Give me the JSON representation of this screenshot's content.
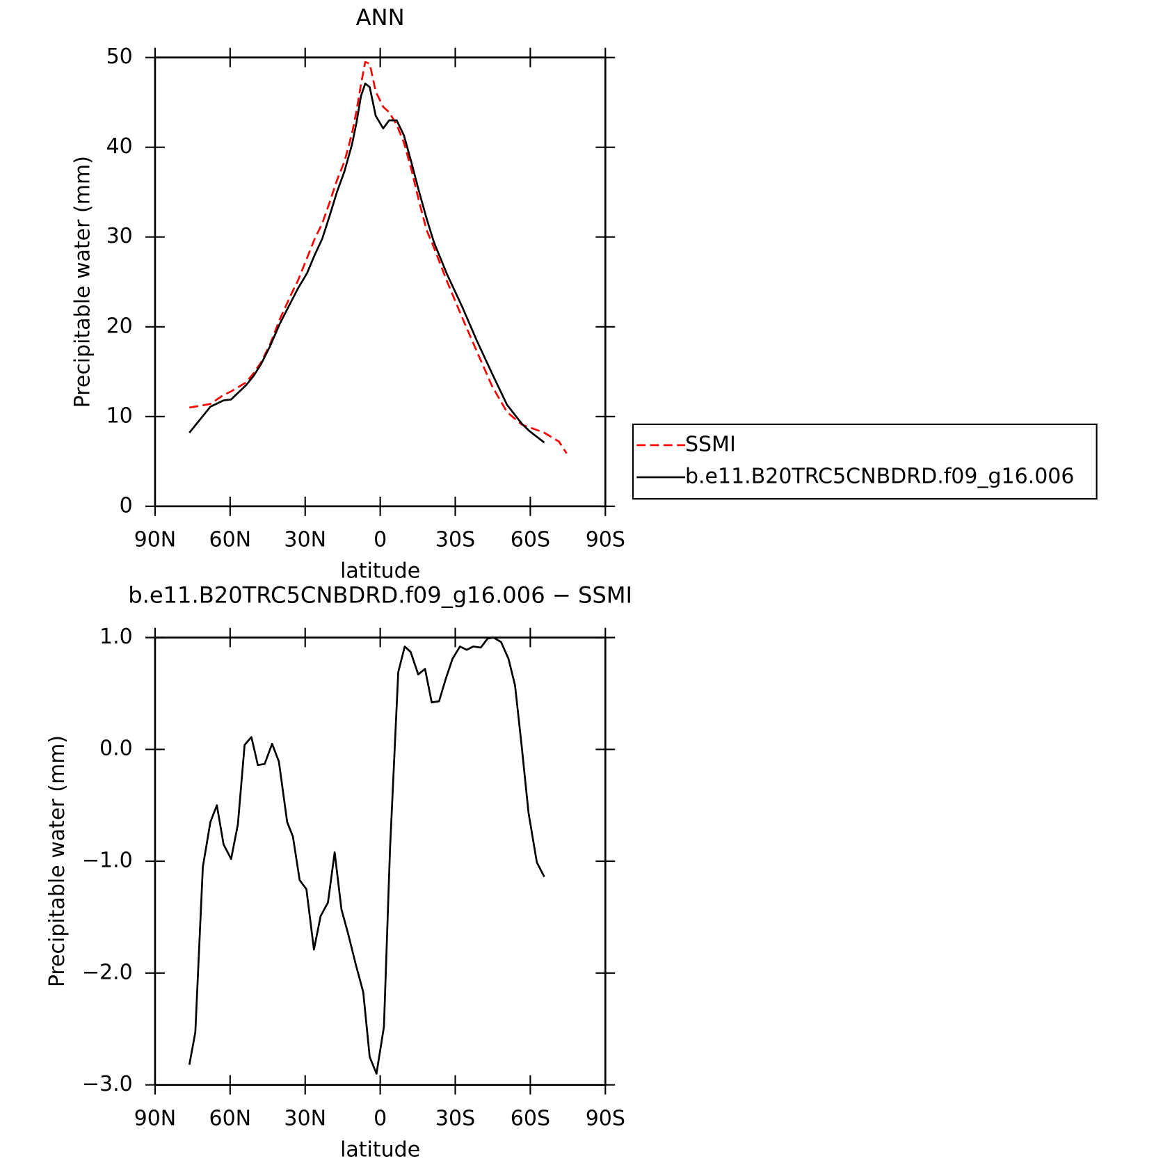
{
  "chart_data": [
    {
      "type": "line",
      "title": "ANN",
      "xlabel": "latitude",
      "ylabel": "Precipitable water (mm)",
      "x": [
        76.3,
        67.9,
        62.6,
        59.6,
        53.6,
        50.7,
        47.7,
        44.1,
        40.2,
        35.8,
        32.8,
        29.2,
        26.2,
        23.2,
        20.3,
        17.3,
        14.3,
        11.3,
        9.5,
        7.7,
        6.0,
        4.2,
        1.8,
        -1.2,
        -3.6,
        -6.6,
        -9.5,
        -12.5,
        -15.5,
        -18.5,
        -21.5,
        -26.8,
        -32.8,
        -38.7,
        -44.7,
        -50.7,
        -56.6,
        -59.6,
        -65.6,
        -71.5,
        -74.5
      ],
      "series": [
        {
          "name": "SSMI",
          "color": "#ff0000",
          "dashed": true,
          "values": [
            11.0,
            11.4,
            12.4,
            12.8,
            13.8,
            14.8,
            16.0,
            18.0,
            20.8,
            23.5,
            25.2,
            27.7,
            29.8,
            31.5,
            33.8,
            36.3,
            38.4,
            41.5,
            44.0,
            47.0,
            49.5,
            49.3,
            46.2,
            44.5,
            43.9,
            42.5,
            40.5,
            37.5,
            34.0,
            30.8,
            28.8,
            25.0,
            21.0,
            17.2,
            13.4,
            10.5,
            9.1,
            8.8,
            8.2,
            7.2,
            5.9
          ]
        },
        {
          "name": "b.e11.B20TRC5CNBDRD.f09_g16.006",
          "color": "#000000",
          "dashed": false,
          "values": [
            8.2,
            11.1,
            11.8,
            11.9,
            13.5,
            14.5,
            15.8,
            17.8,
            20.3,
            22.7,
            24.3,
            26.0,
            28.0,
            29.8,
            32.3,
            35.0,
            37.3,
            40.3,
            42.7,
            45.7,
            47.1,
            46.7,
            43.5,
            42.1,
            43.0,
            43.0,
            41.3,
            38.3,
            35.1,
            32.1,
            29.4,
            25.8,
            22.2,
            18.4,
            14.8,
            11.3,
            9.2,
            8.4,
            7.1,
            null,
            null
          ]
        }
      ],
      "xlim": [
        90,
        -90
      ],
      "xticks": [
        {
          "value": 90,
          "label": "90N"
        },
        {
          "value": 60,
          "label": "60N"
        },
        {
          "value": 30,
          "label": "30N"
        },
        0,
        {
          "value": -30,
          "label": "30S"
        },
        {
          "value": -60,
          "label": "60S"
        },
        {
          "value": -90,
          "label": "90S"
        }
      ],
      "ylim": [
        0,
        50
      ],
      "yticks": [
        0,
        10,
        20,
        30,
        40,
        50
      ],
      "legend": "right"
    },
    {
      "type": "line",
      "title": "b.e11.B20TRC5CNBDRD.f09_g16.006 − SSMI",
      "xlabel": "latitude",
      "ylabel": "Precipitable water (mm)",
      "x": [
        76.3,
        73.9,
        70.9,
        67.9,
        65.3,
        62.6,
        59.6,
        56.9,
        54.2,
        51.5,
        48.9,
        46.2,
        43.2,
        40.5,
        37.2,
        34.9,
        32.2,
        29.5,
        26.5,
        23.8,
        20.9,
        18.2,
        15.5,
        12.8,
        9.8,
        6.8,
        4.2,
        1.5,
        -1.5,
        -3.9,
        -7.2,
        -9.8,
        -12.2,
        -15.2,
        -17.9,
        -20.6,
        -23.5,
        -26.2,
        -28.9,
        -31.9,
        -34.6,
        -37.2,
        -40.2,
        -42.9,
        -45.3,
        -48.3,
        -51.3,
        -53.9,
        -56.6,
        -59.3,
        -62.6,
        -65.6
      ],
      "values": [
        -2.82,
        -2.53,
        -1.05,
        -0.65,
        -0.5,
        -0.85,
        -0.98,
        -0.67,
        0.04,
        0.11,
        -0.14,
        -0.13,
        0.05,
        -0.11,
        -0.65,
        -0.78,
        -1.17,
        -1.25,
        -1.79,
        -1.49,
        -1.37,
        -0.92,
        -1.43,
        -1.65,
        -1.92,
        -2.17,
        -2.75,
        -2.9,
        -2.48,
        -0.9,
        0.69,
        0.92,
        0.87,
        0.67,
        0.72,
        0.42,
        0.43,
        0.63,
        0.81,
        0.92,
        0.89,
        0.92,
        0.91,
        0.99,
        1.0,
        0.96,
        0.81,
        0.57,
        0.02,
        -0.57,
        -1.01,
        -1.14
      ],
      "color": "#000000",
      "xlim": [
        90,
        -90
      ],
      "xticks": [
        {
          "value": 90,
          "label": "90N"
        },
        {
          "value": 60,
          "label": "60N"
        },
        {
          "value": 30,
          "label": "30N"
        },
        0,
        {
          "value": -30,
          "label": "30S"
        },
        {
          "value": -60,
          "label": "60S"
        },
        {
          "value": -90,
          "label": "90S"
        }
      ],
      "ylim": [
        -3,
        1
      ],
      "yticks": [
        {
          "value": -3,
          "label": "−3.0"
        },
        {
          "value": -2,
          "label": "−2.0"
        },
        {
          "value": -1,
          "label": "−1.0"
        },
        {
          "value": 0,
          "label": "0.0"
        },
        {
          "value": 1,
          "label": "1.0"
        }
      ]
    }
  ]
}
